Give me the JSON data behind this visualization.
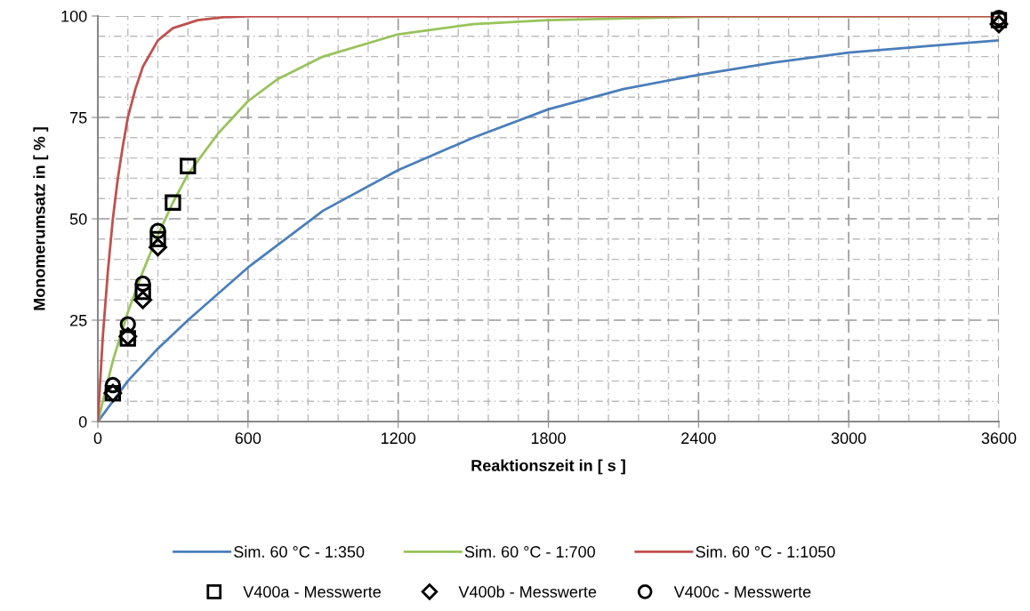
{
  "chart_data": {
    "type": "line",
    "xlabel": "Reaktionszeit in [ s ]",
    "ylabel": "Monomerumsatz in [ % ]",
    "xlim": [
      0,
      3600
    ],
    "xticks": [
      0,
      600,
      1200,
      1800,
      2400,
      3000,
      3600
    ],
    "ylim": [
      0,
      100
    ],
    "yticks": [
      0,
      25,
      50,
      75,
      100
    ],
    "grid": true,
    "legend": "bottom",
    "series": [
      {
        "name": "Sim. 60 °C - 1:350",
        "color": "#4a7ebb",
        "x": [
          0,
          120,
          240,
          360,
          600,
          900,
          1200,
          1500,
          1800,
          2100,
          2400,
          2700,
          3000,
          3300,
          3600
        ],
        "values": [
          0,
          10,
          18,
          25,
          38,
          52,
          62,
          70,
          77,
          82,
          85.5,
          88.5,
          91,
          92.5,
          94
        ]
      },
      {
        "name": "Sim. 60 °C - 1:700",
        "color": "#98c35a",
        "x": [
          0,
          60,
          120,
          180,
          240,
          300,
          360,
          480,
          600,
          720,
          900,
          1200,
          1500,
          1800,
          2400,
          3600
        ],
        "values": [
          0,
          15,
          27,
          37,
          46,
          54,
          61,
          71,
          79,
          84.5,
          90,
          95.5,
          98,
          99,
          99.8,
          100
        ]
      },
      {
        "name": "Sim. 60 °C - 1:1050",
        "color": "#c0504d",
        "x": [
          0,
          20,
          40,
          60,
          80,
          100,
          120,
          150,
          180,
          240,
          300,
          400,
          500,
          600,
          3600
        ],
        "values": [
          0,
          21,
          37,
          50,
          60,
          68,
          75,
          82,
          87.5,
          94,
          97,
          99,
          99.7,
          99.9,
          100
        ]
      },
      {
        "name": "V400a - Messwerte",
        "type": "scatter",
        "marker": "square",
        "color": "#000000",
        "x": [
          60,
          120,
          180,
          240,
          300,
          360,
          3600
        ],
        "values": [
          7,
          20.5,
          32,
          45,
          54,
          63,
          99
        ]
      },
      {
        "name": "V400b - Messwerte",
        "type": "scatter",
        "marker": "diamond",
        "color": "#000000",
        "x": [
          60,
          120,
          180,
          240,
          3600
        ],
        "values": [
          7,
          21,
          30,
          43,
          98
        ]
      },
      {
        "name": "V400c - Messwerte",
        "type": "scatter",
        "marker": "circle",
        "color": "#000000",
        "x": [
          60,
          120,
          180,
          240,
          3600
        ],
        "values": [
          9,
          24,
          34,
          47,
          99.5
        ]
      }
    ]
  }
}
